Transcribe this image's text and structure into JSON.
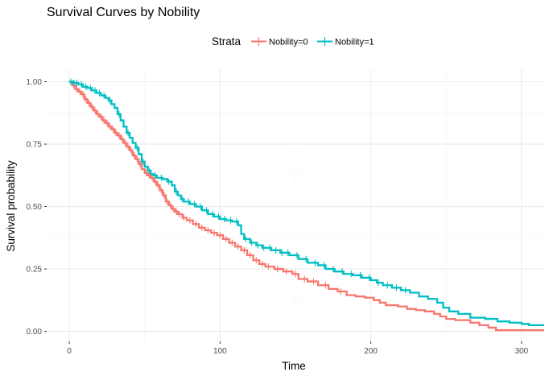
{
  "chart_data": {
    "type": "line",
    "title": "Survival Curves by Nobility",
    "xlabel": "Time",
    "ylabel": "Survival probability",
    "xlim": [
      -15,
      315
    ],
    "ylim": [
      -0.04,
      1.05
    ],
    "x_ticks": [
      0,
      100,
      200,
      300
    ],
    "x_tick_labels": [
      "0",
      "100",
      "200",
      "300"
    ],
    "y_ticks": [
      0,
      0.25,
      0.5,
      0.75,
      1.0
    ],
    "y_tick_labels": [
      "0.00",
      "0.25",
      "0.50",
      "0.75",
      "1.00"
    ],
    "grid": true,
    "legend": {
      "title": "Strata",
      "position": "top"
    },
    "series": [
      {
        "name": "Nobility=0",
        "color": "#F8766D",
        "step_points": [
          [
            0,
            1.0
          ],
          [
            2,
            0.985
          ],
          [
            4,
            0.97
          ],
          [
            6,
            0.96
          ],
          [
            8,
            0.95
          ],
          [
            10,
            0.93
          ],
          [
            12,
            0.915
          ],
          [
            14,
            0.9
          ],
          [
            16,
            0.885
          ],
          [
            18,
            0.87
          ],
          [
            20,
            0.86
          ],
          [
            22,
            0.845
          ],
          [
            24,
            0.835
          ],
          [
            26,
            0.82
          ],
          [
            28,
            0.81
          ],
          [
            30,
            0.795
          ],
          [
            32,
            0.785
          ],
          [
            34,
            0.77
          ],
          [
            36,
            0.755
          ],
          [
            38,
            0.74
          ],
          [
            40,
            0.725
          ],
          [
            42,
            0.705
          ],
          [
            44,
            0.69
          ],
          [
            46,
            0.67
          ],
          [
            48,
            0.65
          ],
          [
            50,
            0.635
          ],
          [
            52,
            0.625
          ],
          [
            54,
            0.615
          ],
          [
            56,
            0.6
          ],
          [
            58,
            0.585
          ],
          [
            60,
            0.565
          ],
          [
            62,
            0.545
          ],
          [
            64,
            0.52
          ],
          [
            66,
            0.505
          ],
          [
            68,
            0.49
          ],
          [
            70,
            0.48
          ],
          [
            72,
            0.47
          ],
          [
            75,
            0.455
          ],
          [
            78,
            0.445
          ],
          [
            82,
            0.43
          ],
          [
            86,
            0.415
          ],
          [
            90,
            0.405
          ],
          [
            94,
            0.395
          ],
          [
            98,
            0.385
          ],
          [
            102,
            0.37
          ],
          [
            106,
            0.355
          ],
          [
            110,
            0.34
          ],
          [
            114,
            0.325
          ],
          [
            118,
            0.305
          ],
          [
            122,
            0.285
          ],
          [
            126,
            0.27
          ],
          [
            130,
            0.26
          ],
          [
            136,
            0.25
          ],
          [
            142,
            0.24
          ],
          [
            148,
            0.23
          ],
          [
            152,
            0.21
          ],
          [
            158,
            0.2
          ],
          [
            165,
            0.185
          ],
          [
            172,
            0.17
          ],
          [
            178,
            0.16
          ],
          [
            184,
            0.145
          ],
          [
            190,
            0.14
          ],
          [
            196,
            0.135
          ],
          [
            202,
            0.125
          ],
          [
            206,
            0.115
          ],
          [
            210,
            0.105
          ],
          [
            218,
            0.1
          ],
          [
            224,
            0.09
          ],
          [
            230,
            0.085
          ],
          [
            236,
            0.08
          ],
          [
            242,
            0.07
          ],
          [
            246,
            0.06
          ],
          [
            250,
            0.05
          ],
          [
            256,
            0.045
          ],
          [
            266,
            0.035
          ],
          [
            272,
            0.025
          ],
          [
            278,
            0.015
          ],
          [
            283,
            0.005
          ],
          [
            315,
            0.005
          ]
        ],
        "censor_x": [
          3,
          5,
          7,
          9,
          11,
          13,
          15,
          17,
          19,
          21,
          23,
          25,
          27,
          29,
          31,
          33,
          35,
          37,
          39,
          41,
          43,
          45,
          47,
          51,
          53,
          55,
          57,
          59,
          61,
          63,
          65,
          67,
          69,
          71,
          73,
          76,
          80,
          84,
          88,
          92,
          96,
          100,
          104,
          108,
          112,
          116,
          120,
          124,
          128,
          132,
          138,
          144,
          150,
          156,
          162,
          170,
          180
        ]
      },
      {
        "name": "Nobility=1",
        "color": "#00BFC4",
        "step_points": [
          [
            0,
            1.0
          ],
          [
            3,
            0.995
          ],
          [
            6,
            0.99
          ],
          [
            9,
            0.98
          ],
          [
            12,
            0.975
          ],
          [
            15,
            0.965
          ],
          [
            18,
            0.955
          ],
          [
            21,
            0.945
          ],
          [
            24,
            0.935
          ],
          [
            26,
            0.925
          ],
          [
            28,
            0.91
          ],
          [
            30,
            0.895
          ],
          [
            32,
            0.87
          ],
          [
            34,
            0.845
          ],
          [
            36,
            0.82
          ],
          [
            38,
            0.795
          ],
          [
            40,
            0.775
          ],
          [
            42,
            0.755
          ],
          [
            44,
            0.735
          ],
          [
            46,
            0.71
          ],
          [
            48,
            0.68
          ],
          [
            50,
            0.66
          ],
          [
            52,
            0.645
          ],
          [
            54,
            0.63
          ],
          [
            56,
            0.625
          ],
          [
            58,
            0.615
          ],
          [
            62,
            0.61
          ],
          [
            65,
            0.6
          ],
          [
            68,
            0.585
          ],
          [
            70,
            0.56
          ],
          [
            72,
            0.545
          ],
          [
            74,
            0.53
          ],
          [
            76,
            0.52
          ],
          [
            80,
            0.51
          ],
          [
            84,
            0.5
          ],
          [
            88,
            0.485
          ],
          [
            92,
            0.47
          ],
          [
            96,
            0.46
          ],
          [
            100,
            0.45
          ],
          [
            104,
            0.445
          ],
          [
            108,
            0.44
          ],
          [
            112,
            0.425
          ],
          [
            114,
            0.39
          ],
          [
            116,
            0.37
          ],
          [
            120,
            0.355
          ],
          [
            124,
            0.345
          ],
          [
            128,
            0.335
          ],
          [
            134,
            0.325
          ],
          [
            140,
            0.315
          ],
          [
            146,
            0.305
          ],
          [
            152,
            0.29
          ],
          [
            158,
            0.275
          ],
          [
            165,
            0.265
          ],
          [
            170,
            0.25
          ],
          [
            176,
            0.24
          ],
          [
            182,
            0.23
          ],
          [
            188,
            0.225
          ],
          [
            194,
            0.215
          ],
          [
            200,
            0.205
          ],
          [
            204,
            0.195
          ],
          [
            208,
            0.185
          ],
          [
            214,
            0.175
          ],
          [
            220,
            0.165
          ],
          [
            226,
            0.155
          ],
          [
            232,
            0.14
          ],
          [
            238,
            0.13
          ],
          [
            244,
            0.115
          ],
          [
            248,
            0.095
          ],
          [
            252,
            0.08
          ],
          [
            258,
            0.07
          ],
          [
            266,
            0.055
          ],
          [
            276,
            0.05
          ],
          [
            284,
            0.04
          ],
          [
            292,
            0.035
          ],
          [
            300,
            0.03
          ],
          [
            305,
            0.025
          ],
          [
            315,
            0.025
          ]
        ],
        "censor_x": [
          1,
          3,
          5,
          8,
          11,
          14,
          17,
          20,
          23,
          27,
          33,
          39,
          45,
          49,
          53,
          57,
          61,
          66,
          71,
          75,
          79,
          83,
          87,
          91,
          95,
          99,
          103,
          107,
          111,
          117,
          121,
          125,
          129,
          133,
          137,
          141,
          145,
          151,
          157,
          163,
          169,
          175,
          181,
          187,
          193,
          199,
          205,
          211,
          217,
          223
        ]
      }
    ]
  }
}
